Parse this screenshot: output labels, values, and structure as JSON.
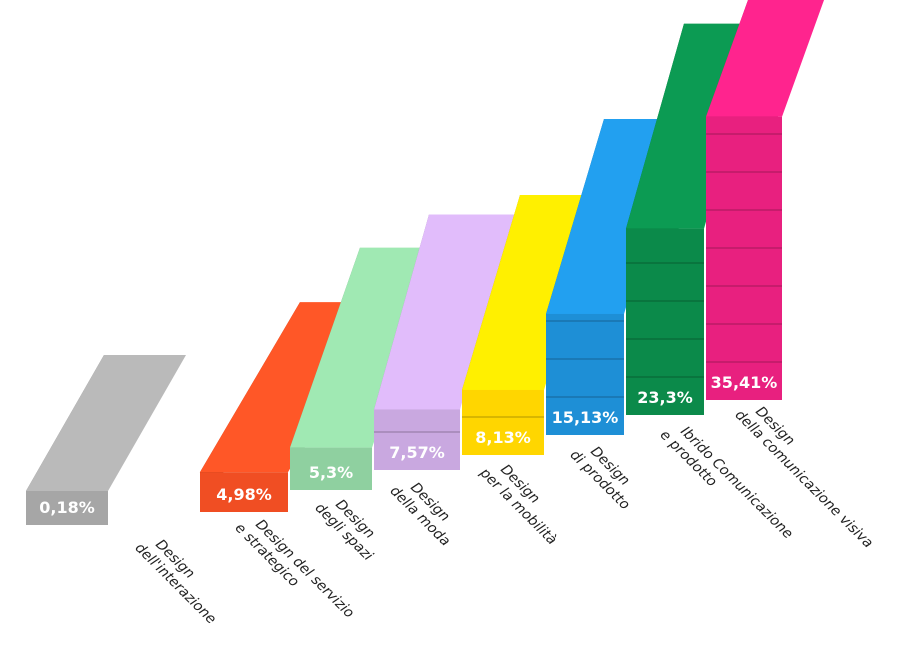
{
  "chart_data": {
    "type": "bar",
    "title": "",
    "xlabel": "",
    "ylabel": "",
    "ylim": [
      0,
      40
    ],
    "grid": false,
    "legend": "none",
    "categories": [
      [
        "Design",
        "dell'interazione"
      ],
      [
        "Design del servizio",
        "e strategico"
      ],
      [
        "Design",
        "degli spazi"
      ],
      [
        "Design",
        "della moda"
      ],
      [
        "Design",
        "per la mobilità"
      ],
      [
        "Design",
        "di prodotto"
      ],
      [
        "Ibrido Comunicazione",
        "e prodotto"
      ],
      [
        "Design",
        "della comunicazione visiva"
      ]
    ],
    "values": [
      0.18,
      4.98,
      5.3,
      7.57,
      8.13,
      15.13,
      23.3,
      35.41
    ],
    "value_labels": [
      "0,18%",
      "4,98%",
      "5,3%",
      "7,57%",
      "8,13%",
      "15,13%",
      "23,3%",
      "35,41%"
    ],
    "colors": [
      "#a6a6a6",
      "#f04e23",
      "#8fd0a0",
      "#c9a8e0",
      "#ffd600",
      "#1e8fd6",
      "#0b8a4a",
      "#e8207f"
    ],
    "label_colors": [
      "#ffffff",
      "#ffffff",
      "#ffffff",
      "#ffffff",
      "#ffffff",
      "#ffffff",
      "#ffffff",
      "#ffffff"
    ]
  }
}
